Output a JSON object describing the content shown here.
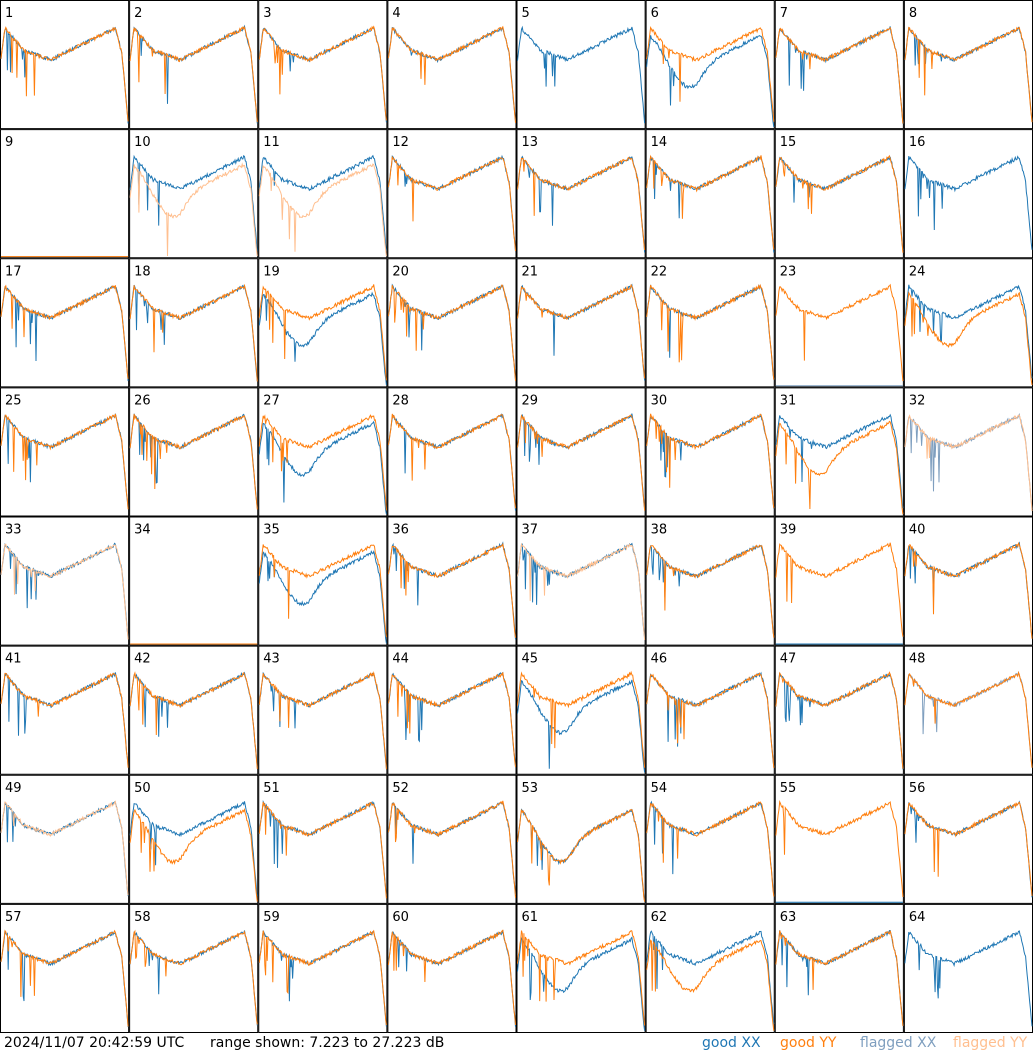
{
  "chart_data": {
    "type": "line",
    "layout": "8x8 grid of small-multiple spectra panels",
    "panel_labels": [
      "1",
      "2",
      "3",
      "4",
      "5",
      "6",
      "7",
      "8",
      "9",
      "10",
      "11",
      "12",
      "13",
      "14",
      "15",
      "16",
      "17",
      "18",
      "19",
      "20",
      "21",
      "22",
      "23",
      "24",
      "25",
      "26",
      "27",
      "28",
      "29",
      "30",
      "31",
      "32",
      "33",
      "34",
      "35",
      "36",
      "37",
      "38",
      "39",
      "40",
      "41",
      "42",
      "43",
      "44",
      "45",
      "46",
      "47",
      "48",
      "49",
      "50",
      "51",
      "52",
      "53",
      "54",
      "55",
      "56",
      "57",
      "58",
      "59",
      "60",
      "61",
      "62",
      "63",
      "64"
    ],
    "ylim": [
      7.223,
      27.223
    ],
    "grid": false,
    "legend": "bottom-right",
    "series": [
      {
        "name": "good XX",
        "color": "#1f77b4"
      },
      {
        "name": "good YY",
        "color": "#ff7f0e"
      },
      {
        "name": "flagged XX",
        "color": "#7f9fbf"
      },
      {
        "name": "flagged YY",
        "color": "#ffbf8f"
      }
    ],
    "panel_state": {
      "xx_flagged": [
        9,
        23,
        32
      ],
      "yy_flagged": [
        10,
        11,
        16,
        32,
        33,
        37,
        49
      ],
      "xx_partial_flagged": [
        48
      ],
      "xx_missing": [],
      "yy_missing": [
        5,
        16,
        64
      ],
      "xx_dead": [
        9,
        23,
        34,
        39,
        55
      ],
      "yy_dead": [
        5,
        9,
        16,
        34,
        64
      ],
      "xx_low": [
        6,
        19,
        27,
        35,
        45,
        53,
        61
      ],
      "yy_low": [
        10,
        11,
        24,
        31,
        50,
        53,
        62
      ]
    }
  },
  "footer": {
    "timestamp": "2024/11/07 20:42:59 UTC",
    "range": "range shown: 7.223 to 27.223 dB"
  },
  "legend": {
    "good_xx": "good XX",
    "good_yy": "good YY",
    "flagged_xx": "flagged XX",
    "flagged_yy": "flagged YY"
  }
}
